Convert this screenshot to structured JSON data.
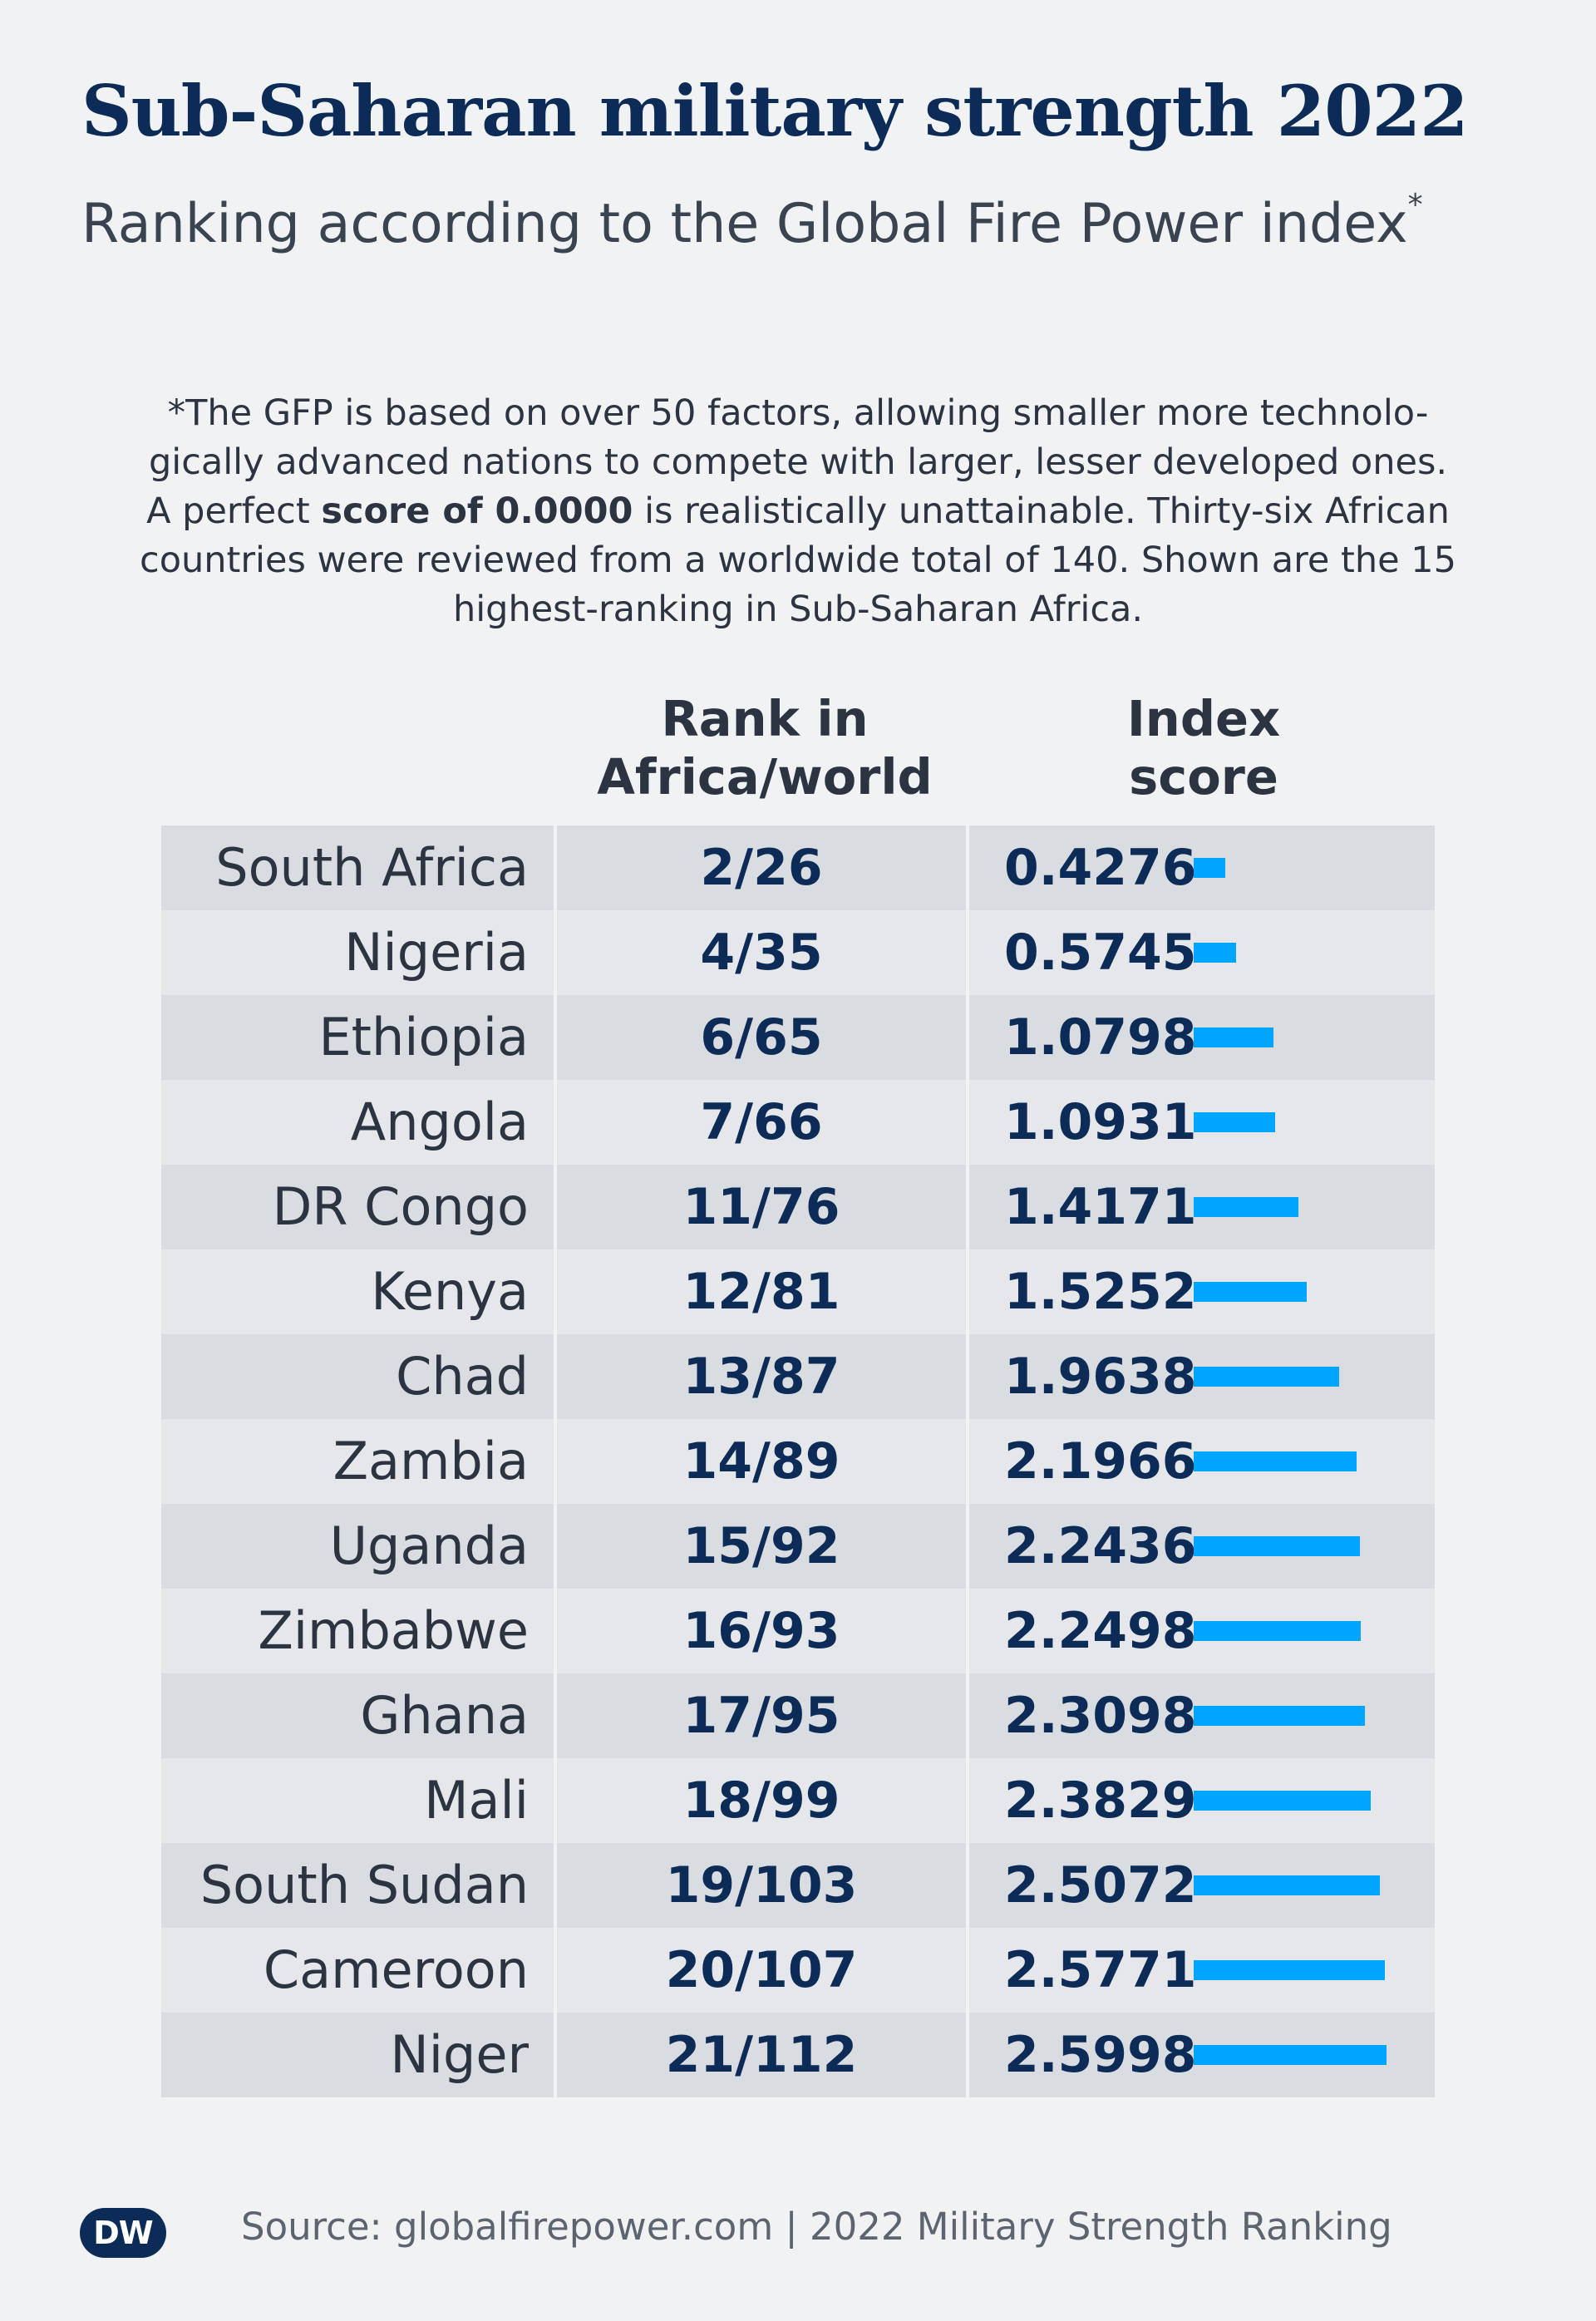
{
  "title": "Sub-Saharan military strength 2022",
  "subtitle": "Ranking according to the Global Fire Power index",
  "subtitle_mark": "*",
  "note": {
    "part1": "*The GFP is based on over 50 factors, allowing smaller more technolo-gically advanced nations to compete with larger, lesser developed ones. A perfect ",
    "bold": "score of 0.0000",
    "part2": " is realistically unattainable. Thirty-six African countries were reviewed from a worldwide total of 140. Shown are the 15 highest-ranking in Sub-Saharan Africa."
  },
  "headers": {
    "rank_line1": "Rank in",
    "rank_line2": "Africa/world",
    "score_line1": "Index",
    "score_line2": "score"
  },
  "colors": {
    "bar": "#00a5ff",
    "title": "#0c2c57",
    "row_dark": "#d9dce0",
    "row_light": "#e5e7ea"
  },
  "chart_data": {
    "type": "table",
    "columns": [
      "",
      "Rank in Africa/world",
      "Index score"
    ],
    "bar_max": 2.5998,
    "rows": [
      {
        "country": "South Africa",
        "rank": "2/26",
        "score": "0.4276"
      },
      {
        "country": "Nigeria",
        "rank": "4/35",
        "score": "0.5745"
      },
      {
        "country": "Ethiopia",
        "rank": "6/65",
        "score": "1.0798"
      },
      {
        "country": "Angola",
        "rank": "7/66",
        "score": "1.0931"
      },
      {
        "country": "DR Congo",
        "rank": "11/76",
        "score": "1.4171"
      },
      {
        "country": "Kenya",
        "rank": "12/81",
        "score": "1.5252"
      },
      {
        "country": "Chad",
        "rank": "13/87",
        "score": "1.9638"
      },
      {
        "country": "Zambia",
        "rank": "14/89",
        "score": "2.1966"
      },
      {
        "country": "Uganda",
        "rank": "15/92",
        "score": "2.2436"
      },
      {
        "country": "Zimbabwe",
        "rank": "16/93",
        "score": "2.2498"
      },
      {
        "country": "Ghana",
        "rank": "17/95",
        "score": "2.3098"
      },
      {
        "country": "Mali",
        "rank": "18/99",
        "score": "2.3829"
      },
      {
        "country": "South Sudan",
        "rank": "19/103",
        "score": "2.5072"
      },
      {
        "country": "Cameroon",
        "rank": "20/107",
        "score": "2.5771"
      },
      {
        "country": "Niger",
        "rank": "21/112",
        "score": "2.5998"
      }
    ]
  },
  "footer": {
    "logo_text": "DW",
    "source": "Source: globalfirepower.com | 2022 Military Strength Ranking"
  }
}
